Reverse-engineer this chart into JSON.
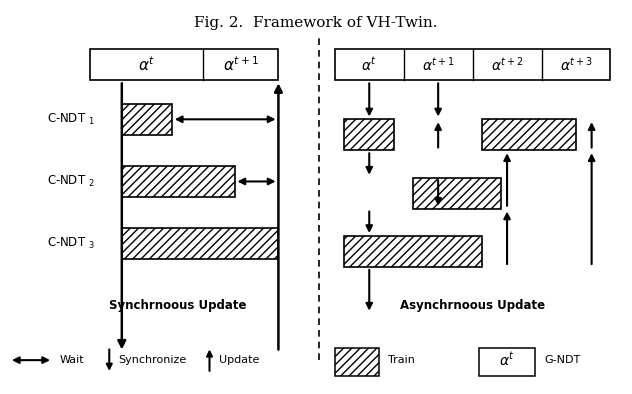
{
  "title": "Fig. 2.  Framework of VH-Twin.",
  "title_fontsize": 11,
  "fig_width": 6.32,
  "fig_height": 3.94,
  "background_color": "#ffffff",
  "hatch_pattern": "////",
  "box_facecolor": "#ffffff",
  "box_edgecolor": "#000000",
  "sync_title": "Synchrnoous Update",
  "async_title": "Asynchrnoous Update",
  "left_header": [
    "α^t",
    "α^{t+1}"
  ],
  "right_header": [
    "α^t",
    "α^{t+1}",
    "α^{t+2}",
    "α^{t+3}"
  ]
}
